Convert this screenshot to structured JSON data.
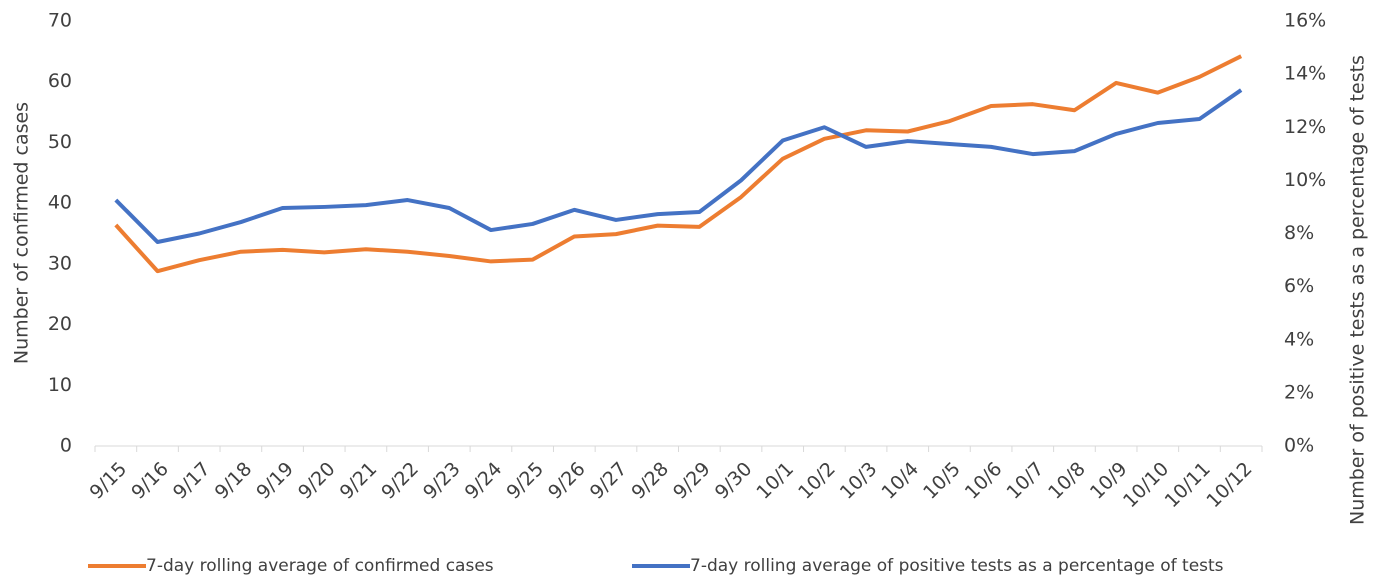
{
  "chart_data": {
    "type": "line",
    "y_label": "Number of confirmed cases",
    "y2_label": "Number of positive tests as a percentage of tests",
    "categories": [
      "9/15",
      "9/16",
      "9/17",
      "9/18",
      "9/19",
      "9/20",
      "9/21",
      "9/22",
      "9/23",
      "9/24",
      "9/25",
      "9/26",
      "9/27",
      "9/28",
      "9/29",
      "9/30",
      "10/1",
      "10/2",
      "10/3",
      "10/4",
      "10/5",
      "10/6",
      "10/7",
      "10/8",
      "10/9",
      "10/10",
      "10/11",
      "10/12"
    ],
    "series": [
      {
        "name": "7-day rolling average of confirmed cases",
        "color": "#ed7d31",
        "values": [
          36.4,
          28.8,
          30.6,
          32,
          32.3,
          31.9,
          32.4,
          32,
          31.3,
          30.4,
          30.7,
          34.5,
          34.9,
          36.3,
          36.1,
          41,
          47.3,
          50.6,
          52,
          51.8,
          53.5,
          56,
          56.3,
          55.3,
          59.8,
          58.2,
          60.8,
          64.2
        ]
      },
      {
        "name": "7-day rolling average of positive tests as a percentage of tests",
        "color": "#4472c4",
        "axis": "y2",
        "values": [
          9.26,
          7.68,
          8.0,
          8.43,
          8.96,
          9.0,
          9.07,
          9.26,
          8.96,
          8.13,
          8.36,
          8.89,
          8.51,
          8.73,
          8.81,
          10.0,
          11.5,
          12.0,
          11.26,
          11.48,
          11.37,
          11.26,
          10.99,
          11.1,
          11.75,
          12.16,
          12.31,
          13.4
        ]
      }
    ],
    "ylim": [
      0,
      70
    ],
    "yticks": [
      0,
      10,
      20,
      30,
      40,
      50,
      60,
      70
    ],
    "y2lim": [
      0,
      16
    ],
    "y2ticks": [
      {
        "value": 0,
        "label": "0%"
      },
      {
        "value": 2,
        "label": "2%"
      },
      {
        "value": 4,
        "label": "4%"
      },
      {
        "value": 6,
        "label": "6%"
      },
      {
        "value": 8,
        "label": "8%"
      },
      {
        "value": 10,
        "label": "10%"
      },
      {
        "value": 12,
        "label": "12%"
      },
      {
        "value": 14,
        "label": "14%"
      },
      {
        "value": 16,
        "label": "16%"
      }
    ],
    "grid": false,
    "legend": "bottom"
  }
}
